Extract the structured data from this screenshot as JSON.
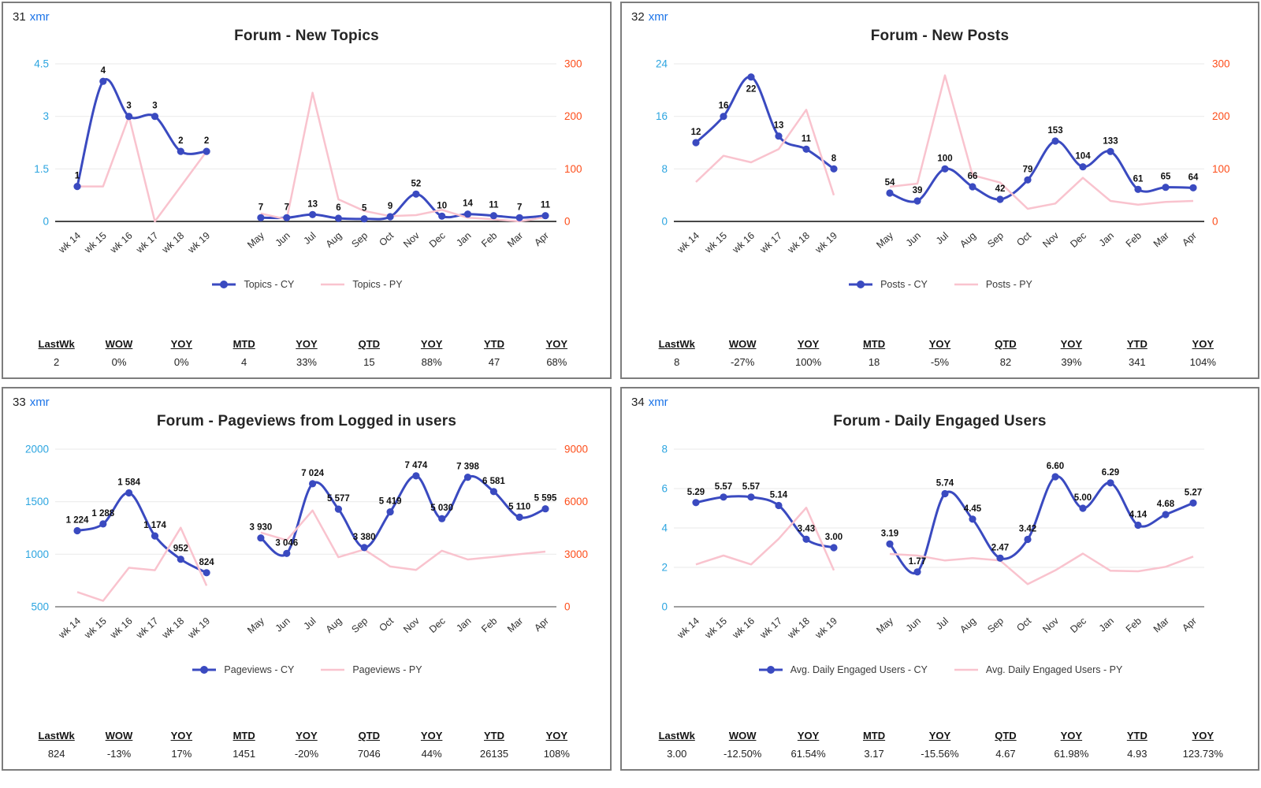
{
  "colors": {
    "cy_line": "#3a4ac0",
    "py_line": "#f9c3ce",
    "left_axis_text": "#2ca5e0",
    "right_axis_text": "#fd4e1b",
    "link": "#1a73e8",
    "grid_line": "#e9e9e9",
    "x_label_text": "#2e2e2e",
    "data_label_text": "#111111"
  },
  "stats_headers": [
    "LastWk",
    "WOW",
    "YOY",
    "MTD",
    "YOY",
    "QTD",
    "YOY",
    "YTD",
    "YOY"
  ],
  "chart_data": [
    {
      "type": "line",
      "id": "31",
      "tool_link": "xmr",
      "title": "Forum - New Topics",
      "x_weekly": [
        "wk 14",
        "wk 15",
        "wk 16",
        "wk 17",
        "wk 18",
        "wk 19"
      ],
      "x_monthly": [
        "May",
        "Jun",
        "Jul",
        "Aug",
        "Sep",
        "Oct",
        "Nov",
        "Dec",
        "Jan",
        "Feb",
        "Mar",
        "Apr"
      ],
      "axes": {
        "left_ticks": [
          "0",
          "1.5",
          "3",
          "4.5"
        ],
        "left_values": [
          0,
          1.5,
          3,
          4.5
        ],
        "right_ticks": [
          "0",
          "100",
          "200",
          "300"
        ],
        "right_values": [
          0,
          100,
          200,
          300
        ]
      },
      "monthly_axis": "right",
      "weekly_cy": [
        1,
        4,
        3,
        3,
        2,
        2
      ],
      "weekly_cy_labels": [
        "1",
        "4",
        "3",
        "3",
        "2",
        "2"
      ],
      "weekly_py": [
        1,
        1,
        3,
        0,
        1,
        2
      ],
      "monthly_cy": [
        7,
        7,
        13,
        6,
        5,
        9,
        52,
        10,
        14,
        11,
        7,
        11
      ],
      "monthly_cy_labels": [
        "7",
        "7",
        "13",
        "6",
        "5",
        "9",
        "52",
        "10",
        "14",
        "11",
        "7",
        "11"
      ],
      "monthly_py": [
        15,
        4,
        245,
        42,
        20,
        10,
        12,
        22,
        7,
        4,
        0,
        8
      ],
      "legend_cy": "Topics - CY",
      "legend_py": "Topics - PY",
      "stats": [
        "2",
        "0%",
        "0%",
        "4",
        "33%",
        "15",
        "88%",
        "47",
        "68%"
      ]
    },
    {
      "type": "line",
      "id": "32",
      "tool_link": "xmr",
      "title": "Forum - New Posts",
      "x_weekly": [
        "wk 14",
        "wk 15",
        "wk 16",
        "wk 17",
        "wk 18",
        "wk 19"
      ],
      "x_monthly": [
        "May",
        "Jun",
        "Jul",
        "Aug",
        "Sep",
        "Oct",
        "Nov",
        "Dec",
        "Jan",
        "Feb",
        "Mar",
        "Apr"
      ],
      "axes": {
        "left_ticks": [
          "0",
          "8",
          "16",
          "24"
        ],
        "left_values": [
          0,
          8,
          16,
          24
        ],
        "right_ticks": [
          "0",
          "100",
          "200",
          "300"
        ],
        "right_values": [
          0,
          100,
          200,
          300
        ]
      },
      "monthly_axis": "right",
      "weekly_cy": [
        12,
        16,
        22,
        13,
        11,
        8
      ],
      "weekly_cy_labels": [
        "12",
        "16",
        "22",
        "13",
        "11",
        "8"
      ],
      "weekly_py": [
        6,
        10,
        9,
        11,
        17,
        4
      ],
      "monthly_cy": [
        54,
        39,
        100,
        66,
        42,
        79,
        153,
        104,
        133,
        61,
        65,
        64
      ],
      "monthly_cy_labels": [
        "54",
        "39",
        "100",
        "66",
        "42",
        "79",
        "153",
        "104",
        "133",
        "61",
        "65",
        "64"
      ],
      "monthly_py": [
        66,
        72,
        278,
        88,
        74,
        24,
        34,
        83,
        39,
        32,
        37,
        39
      ],
      "legend_cy": "Posts - CY",
      "legend_py": "Posts - PY",
      "stats": [
        "8",
        "-27%",
        "100%",
        "18",
        "-5%",
        "82",
        "39%",
        "341",
        "104%"
      ]
    },
    {
      "type": "line",
      "id": "33",
      "tool_link": "xmr",
      "title": "Forum - Pageviews from Logged in users",
      "x_weekly": [
        "wk 14",
        "wk 15",
        "wk 16",
        "wk 17",
        "wk 18",
        "wk 19"
      ],
      "x_monthly": [
        "May",
        "Jun",
        "Jul",
        "Aug",
        "Sep",
        "Oct",
        "Nov",
        "Dec",
        "Jan",
        "Feb",
        "Mar",
        "Apr"
      ],
      "axes": {
        "left_ticks": [
          "500",
          "1000",
          "1500",
          "2000"
        ],
        "left_values": [
          500,
          1000,
          1500,
          2000
        ],
        "right_ticks": [
          "0",
          "3000",
          "6000",
          "9000"
        ],
        "right_values": [
          0,
          3000,
          6000,
          9000
        ]
      },
      "monthly_axis": "right",
      "weekly_cy": [
        1224,
        1288,
        1584,
        1174,
        952,
        824
      ],
      "weekly_cy_labels": [
        "1 224",
        "1 288",
        "1 584",
        "1 174",
        "952",
        "824"
      ],
      "weekly_py": [
        640,
        556,
        871,
        848,
        1252,
        700
      ],
      "monthly_cy": [
        3930,
        3046,
        7024,
        5577,
        3380,
        5419,
        7474,
        5030,
        7398,
        6581,
        5110,
        5595
      ],
      "monthly_cy_labels": [
        "3 930",
        "3 046",
        "7 024",
        "5 577",
        "3 380",
        "5 419",
        "7 474",
        "5 030",
        "7 398",
        "6 581",
        "5 110",
        "5 595"
      ],
      "monthly_py": [
        4240,
        3800,
        5500,
        2830,
        3270,
        2300,
        2100,
        3200,
        2700,
        2850,
        3000,
        3150
      ],
      "legend_cy": "Pageviews - CY",
      "legend_py": "Pageviews - PY",
      "stats": [
        "824",
        "-13%",
        "17%",
        "1451",
        "-20%",
        "7046",
        "44%",
        "26135",
        "108%"
      ]
    },
    {
      "type": "line",
      "id": "34",
      "tool_link": "xmr",
      "title": "Forum - Daily Engaged Users",
      "x_weekly": [
        "wk 14",
        "wk 15",
        "wk 16",
        "wk 17",
        "wk 18",
        "wk 19"
      ],
      "x_monthly": [
        "May",
        "Jun",
        "Jul",
        "Aug",
        "Sep",
        "Oct",
        "Nov",
        "Dec",
        "Jan",
        "Feb",
        "Mar",
        "Apr"
      ],
      "axes": {
        "left_ticks": [
          "0",
          "2",
          "4",
          "6",
          "8"
        ],
        "left_values": [
          0,
          2,
          4,
          6,
          8
        ],
        "right_ticks": null,
        "right_values": null
      },
      "monthly_axis": "left",
      "weekly_cy": [
        5.29,
        5.57,
        5.57,
        5.14,
        3.43,
        3.0
      ],
      "weekly_cy_labels": [
        "5.29",
        "5.57",
        "5.57",
        "5.14",
        "3.43",
        "3.00"
      ],
      "weekly_py": [
        2.15,
        2.6,
        2.15,
        3.45,
        5.03,
        1.85
      ],
      "monthly_cy": [
        3.19,
        1.77,
        5.74,
        4.45,
        2.47,
        3.42,
        6.6,
        5.0,
        6.29,
        4.14,
        4.68,
        5.27
      ],
      "monthly_cy_labels": [
        "3.19",
        "1.77",
        "5.74",
        "4.45",
        "2.47",
        "3.42",
        "6.60",
        "5.00",
        "6.29",
        "4.14",
        "4.68",
        "5.27"
      ],
      "monthly_py": [
        2.68,
        2.6,
        2.35,
        2.47,
        2.35,
        1.15,
        1.85,
        2.7,
        1.83,
        1.8,
        2.03,
        2.55
      ],
      "legend_cy": "Avg. Daily Engaged Users - CY",
      "legend_py": "Avg. Daily Engaged Users - PY",
      "stats": [
        "3.00",
        "-12.50%",
        "61.54%",
        "3.17",
        "-15.56%",
        "4.67",
        "61.98%",
        "4.93",
        "123.73%"
      ]
    }
  ]
}
